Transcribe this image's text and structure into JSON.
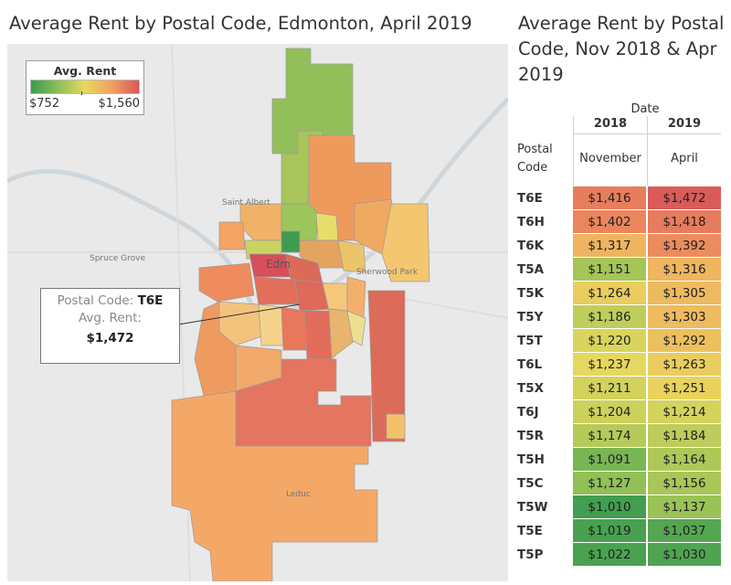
{
  "map": {
    "title": "Average Rent by Postal Code, Edmonton, April 2019",
    "legend": {
      "title": "Avg. Rent",
      "min_label": "$752",
      "max_label": "$1,560",
      "min": 752,
      "max": 1560
    },
    "tooltip": {
      "label_code": "Postal Code:",
      "code": "T6E",
      "label_rent": "Avg. Rent:",
      "rent": "$1,472"
    },
    "places": [
      "Saint Albert",
      "Spruce Grove",
      "Sherwood Park",
      "Edm",
      "Leduc"
    ]
  },
  "chart_data": {
    "type": "table",
    "title": "Average Rent by Postal Code, Nov 2018 & Apr 2019",
    "column_header": "Date",
    "row_header": "Postal Code",
    "years": [
      "2018",
      "2019"
    ],
    "months": [
      "November",
      "April"
    ],
    "rows": [
      {
        "code": "T6E",
        "nov_2018": 1416,
        "apr_2019": 1472,
        "nov_label": "$1,416",
        "apr_label": "$1,472"
      },
      {
        "code": "T6H",
        "nov_2018": 1402,
        "apr_2019": 1418,
        "nov_label": "$1,402",
        "apr_label": "$1,418"
      },
      {
        "code": "T6K",
        "nov_2018": 1317,
        "apr_2019": 1392,
        "nov_label": "$1,317",
        "apr_label": "$1,392"
      },
      {
        "code": "T5A",
        "nov_2018": 1151,
        "apr_2019": 1316,
        "nov_label": "$1,151",
        "apr_label": "$1,316"
      },
      {
        "code": "T5K",
        "nov_2018": 1264,
        "apr_2019": 1305,
        "nov_label": "$1,264",
        "apr_label": "$1,305"
      },
      {
        "code": "T5Y",
        "nov_2018": 1186,
        "apr_2019": 1303,
        "nov_label": "$1,186",
        "apr_label": "$1,303"
      },
      {
        "code": "T5T",
        "nov_2018": 1220,
        "apr_2019": 1292,
        "nov_label": "$1,220",
        "apr_label": "$1,292"
      },
      {
        "code": "T6L",
        "nov_2018": 1237,
        "apr_2019": 1263,
        "nov_label": "$1,237",
        "apr_label": "$1,263"
      },
      {
        "code": "T5X",
        "nov_2018": 1211,
        "apr_2019": 1251,
        "nov_label": "$1,211",
        "apr_label": "$1,251"
      },
      {
        "code": "T6J",
        "nov_2018": 1204,
        "apr_2019": 1214,
        "nov_label": "$1,204",
        "apr_label": "$1,214"
      },
      {
        "code": "T5R",
        "nov_2018": 1174,
        "apr_2019": 1184,
        "nov_label": "$1,174",
        "apr_label": "$1,184"
      },
      {
        "code": "T5H",
        "nov_2018": 1091,
        "apr_2019": 1164,
        "nov_label": "$1,091",
        "apr_label": "$1,164"
      },
      {
        "code": "T5C",
        "nov_2018": 1127,
        "apr_2019": 1156,
        "nov_label": "$1,127",
        "apr_label": "$1,156"
      },
      {
        "code": "T5W",
        "nov_2018": 1010,
        "apr_2019": 1137,
        "nov_label": "$1,010",
        "apr_label": "$1,137"
      },
      {
        "code": "T5E",
        "nov_2018": 1019,
        "apr_2019": 1037,
        "nov_label": "$1,019",
        "apr_label": "$1,037"
      },
      {
        "code": "T5P",
        "nov_2018": 1022,
        "apr_2019": 1030,
        "nov_label": "$1,022",
        "apr_label": "$1,030"
      }
    ],
    "color_scale": [
      "#3b9b4f",
      "#8cbf55",
      "#e8d85e",
      "#f3a05f",
      "#d9565a"
    ]
  }
}
